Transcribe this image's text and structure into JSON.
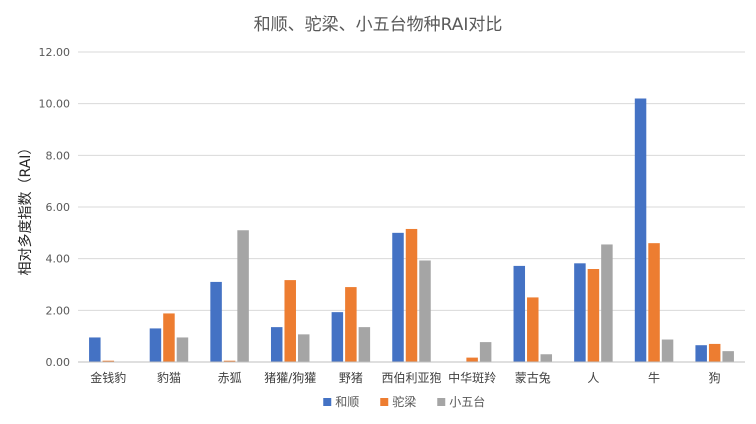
{
  "chart_data": {
    "type": "bar",
    "title": "和顺、驼梁、小五台物种RAI对比",
    "xlabel": "",
    "ylabel": "相对多度指数（RAI）",
    "ylim": [
      0,
      12
    ],
    "yticks": [
      "0.00",
      "2.00",
      "4.00",
      "6.00",
      "8.00",
      "10.00",
      "12.00"
    ],
    "grid": true,
    "legend_position": "bottom",
    "categories": [
      "金钱豹",
      "豹猫",
      "赤狐",
      "猪獾/狗獾",
      "野猪",
      "西伯利亚狍",
      "中华斑羚",
      "蒙古兔",
      "人",
      "牛",
      "狗"
    ],
    "series": [
      {
        "name": "和顺",
        "color": "#4472C4",
        "values": [
          0.95,
          1.3,
          3.1,
          1.35,
          1.93,
          5.0,
          0,
          3.72,
          3.82,
          10.2,
          0.65
        ]
      },
      {
        "name": "驼梁",
        "color": "#ED7D31",
        "values": [
          0.05,
          1.88,
          0.05,
          3.17,
          2.9,
          5.15,
          0.17,
          2.5,
          3.6,
          4.6,
          0.7
        ]
      },
      {
        "name": "小五台",
        "color": "#A5A5A5",
        "values": [
          0,
          0.95,
          5.1,
          1.07,
          1.35,
          3.93,
          0.77,
          0.3,
          4.55,
          0.87,
          0.42
        ]
      }
    ]
  }
}
